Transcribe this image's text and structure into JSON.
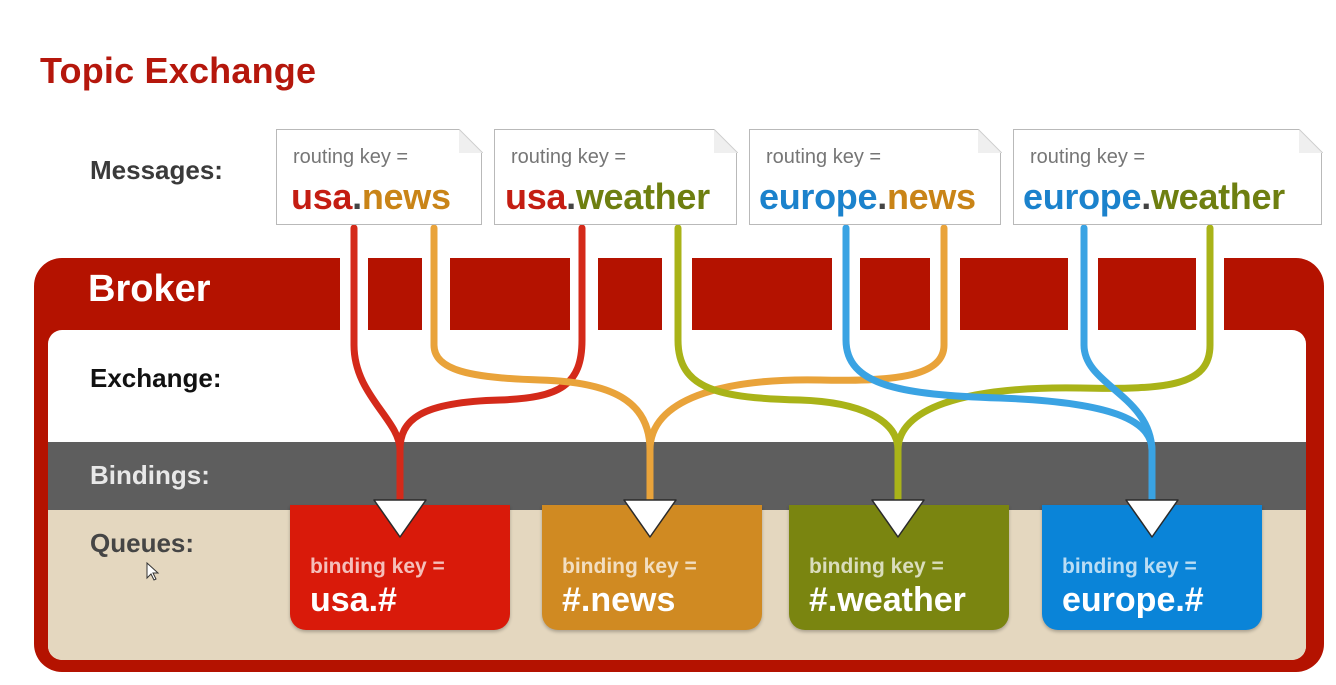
{
  "title": "Topic Exchange",
  "labels": {
    "messages": "Messages:",
    "broker": "Broker",
    "exchange": "Exchange:",
    "bindings": "Bindings:",
    "queues": "Queues:"
  },
  "messages": [
    {
      "routing_label": "routing key =",
      "part1": "usa",
      "dot": ".",
      "part2": "news",
      "color1": "#c41d12",
      "color2": "#c98417"
    },
    {
      "routing_label": "routing key =",
      "part1": "usa",
      "dot": ".",
      "part2": "weather",
      "color1": "#c41d12",
      "color2": "#6e7f10"
    },
    {
      "routing_label": "routing key =",
      "part1": "europe",
      "dot": ".",
      "part2": "news",
      "color1": "#1b82cc",
      "color2": "#c98417"
    },
    {
      "routing_label": "routing key =",
      "part1": "europe",
      "dot": ".",
      "part2": "weather",
      "color1": "#1b82cc",
      "color2": "#6e7f10"
    }
  ],
  "queues": [
    {
      "binding_label": "binding key =",
      "binding_key": "usa.#",
      "color": "#d91a0a"
    },
    {
      "binding_label": "binding key =",
      "binding_key": "#.news",
      "color": "#d08a22"
    },
    {
      "binding_label": "binding key =",
      "binding_key": "#.weather",
      "color": "#7a8510"
    },
    {
      "binding_label": "binding key =",
      "binding_key": "europe.#",
      "color": "#0a84d8"
    }
  ],
  "colors": {
    "brand_red": "#b41200",
    "usa": "#d42a1a",
    "news": "#e9a33a",
    "weather": "#a9b318",
    "europe": "#3aa3e3"
  }
}
